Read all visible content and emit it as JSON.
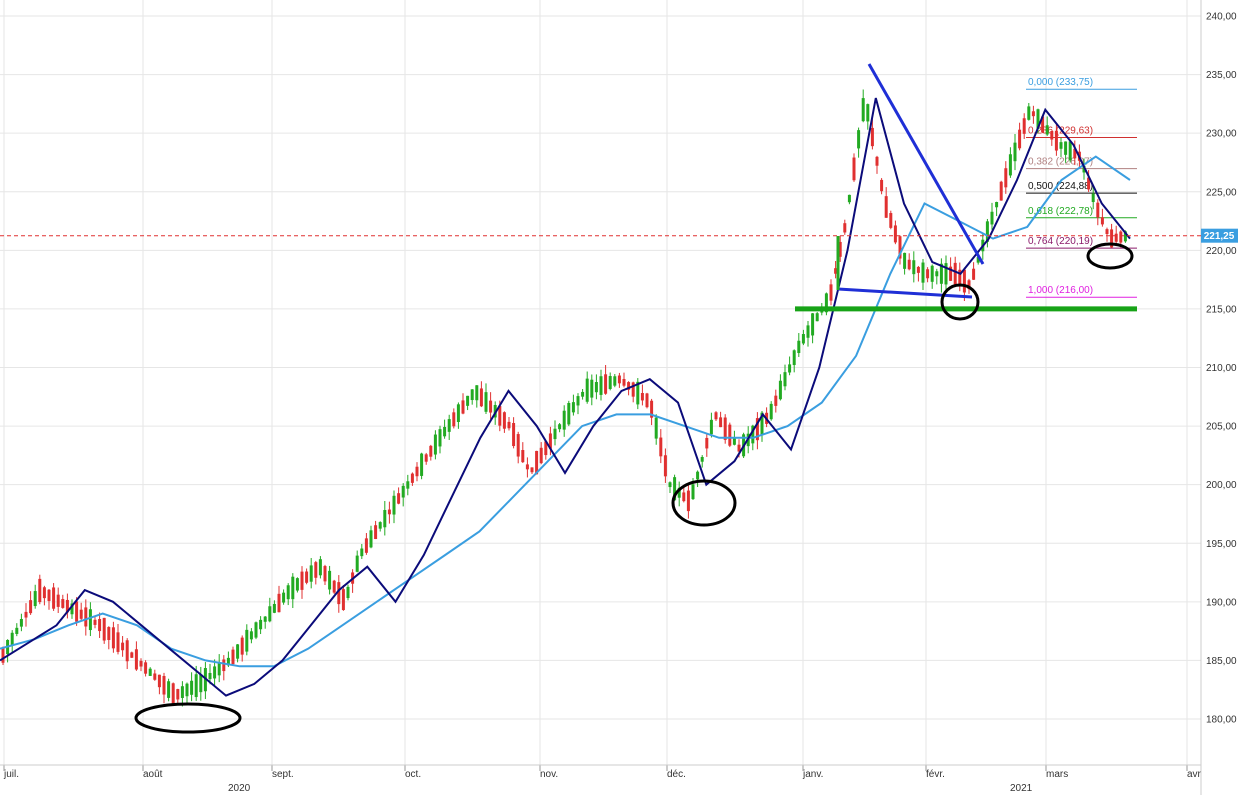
{
  "colors": {
    "up": "#22aa22",
    "down": "#e03030",
    "ma_short": "#0b0b7a",
    "ma_long": "#3a9ee0",
    "support": "#17a317",
    "trendline": "#1f2fd6",
    "price_line": "#e03030",
    "price_badge": "#3a9ee0"
  },
  "chart_data": {
    "type": "line",
    "y_range": [
      175,
      241
    ],
    "y_ticks": [
      "240,00",
      "235,00",
      "230,00",
      "225,00",
      "220,00",
      "215,00",
      "210,00",
      "205,00",
      "200,00",
      "195,00",
      "190,00",
      "185,00",
      "180,00"
    ],
    "x_ticks": [
      "juil.",
      "août",
      "sept.",
      "oct.",
      "nov.",
      "déc.",
      "janv.",
      "févr.",
      "mars",
      "avr"
    ],
    "year_labels": [
      "2020",
      "2021"
    ],
    "last_price_label": "221,25",
    "last_price": 221.25,
    "support_level": 215.0,
    "fibonacci": [
      {
        "label": "0,000 (233,75)",
        "value": 233.75,
        "color": "#3a9ee0"
      },
      {
        "label": "0,236 (229,63)",
        "value": 229.63,
        "color": "#d03030"
      },
      {
        "label": "0,382 (226,97)",
        "value": 226.97,
        "color": "#b08080"
      },
      {
        "label": "0,500 (224,88)",
        "value": 224.88,
        "color": "#111111"
      },
      {
        "label": "0,618 (222,78)",
        "value": 222.78,
        "color": "#22aa22"
      },
      {
        "label": "0,764 (220,19)",
        "value": 220.19,
        "color": "#8a1a6a"
      },
      {
        "label": "1,000 (216,00)",
        "value": 216.0,
        "color": "#e020e0"
      }
    ],
    "series": [
      {
        "name": "",
        "values": [
          185,
          186.5,
          188,
          191,
          190,
          188,
          186,
          184,
          182,
          183,
          185,
          188,
          191,
          193,
          190,
          194,
          199,
          204,
          208,
          205,
          201,
          205,
          208,
          209,
          207,
          200,
          202,
          206,
          203,
          210,
          220,
          233,
          224,
          219,
          218,
          221,
          226,
          232,
          229,
          224,
          221
        ]
      },
      {
        "name": "",
        "values": [
          186,
          186.8,
          188,
          189,
          188,
          186,
          185,
          184.5,
          184.5,
          186,
          188,
          190,
          192,
          194,
          196,
          199,
          202,
          205,
          206,
          206,
          205,
          204,
          204,
          205,
          207,
          211,
          218,
          224,
          222.5,
          221,
          222,
          226,
          228,
          226
        ]
      }
    ]
  }
}
